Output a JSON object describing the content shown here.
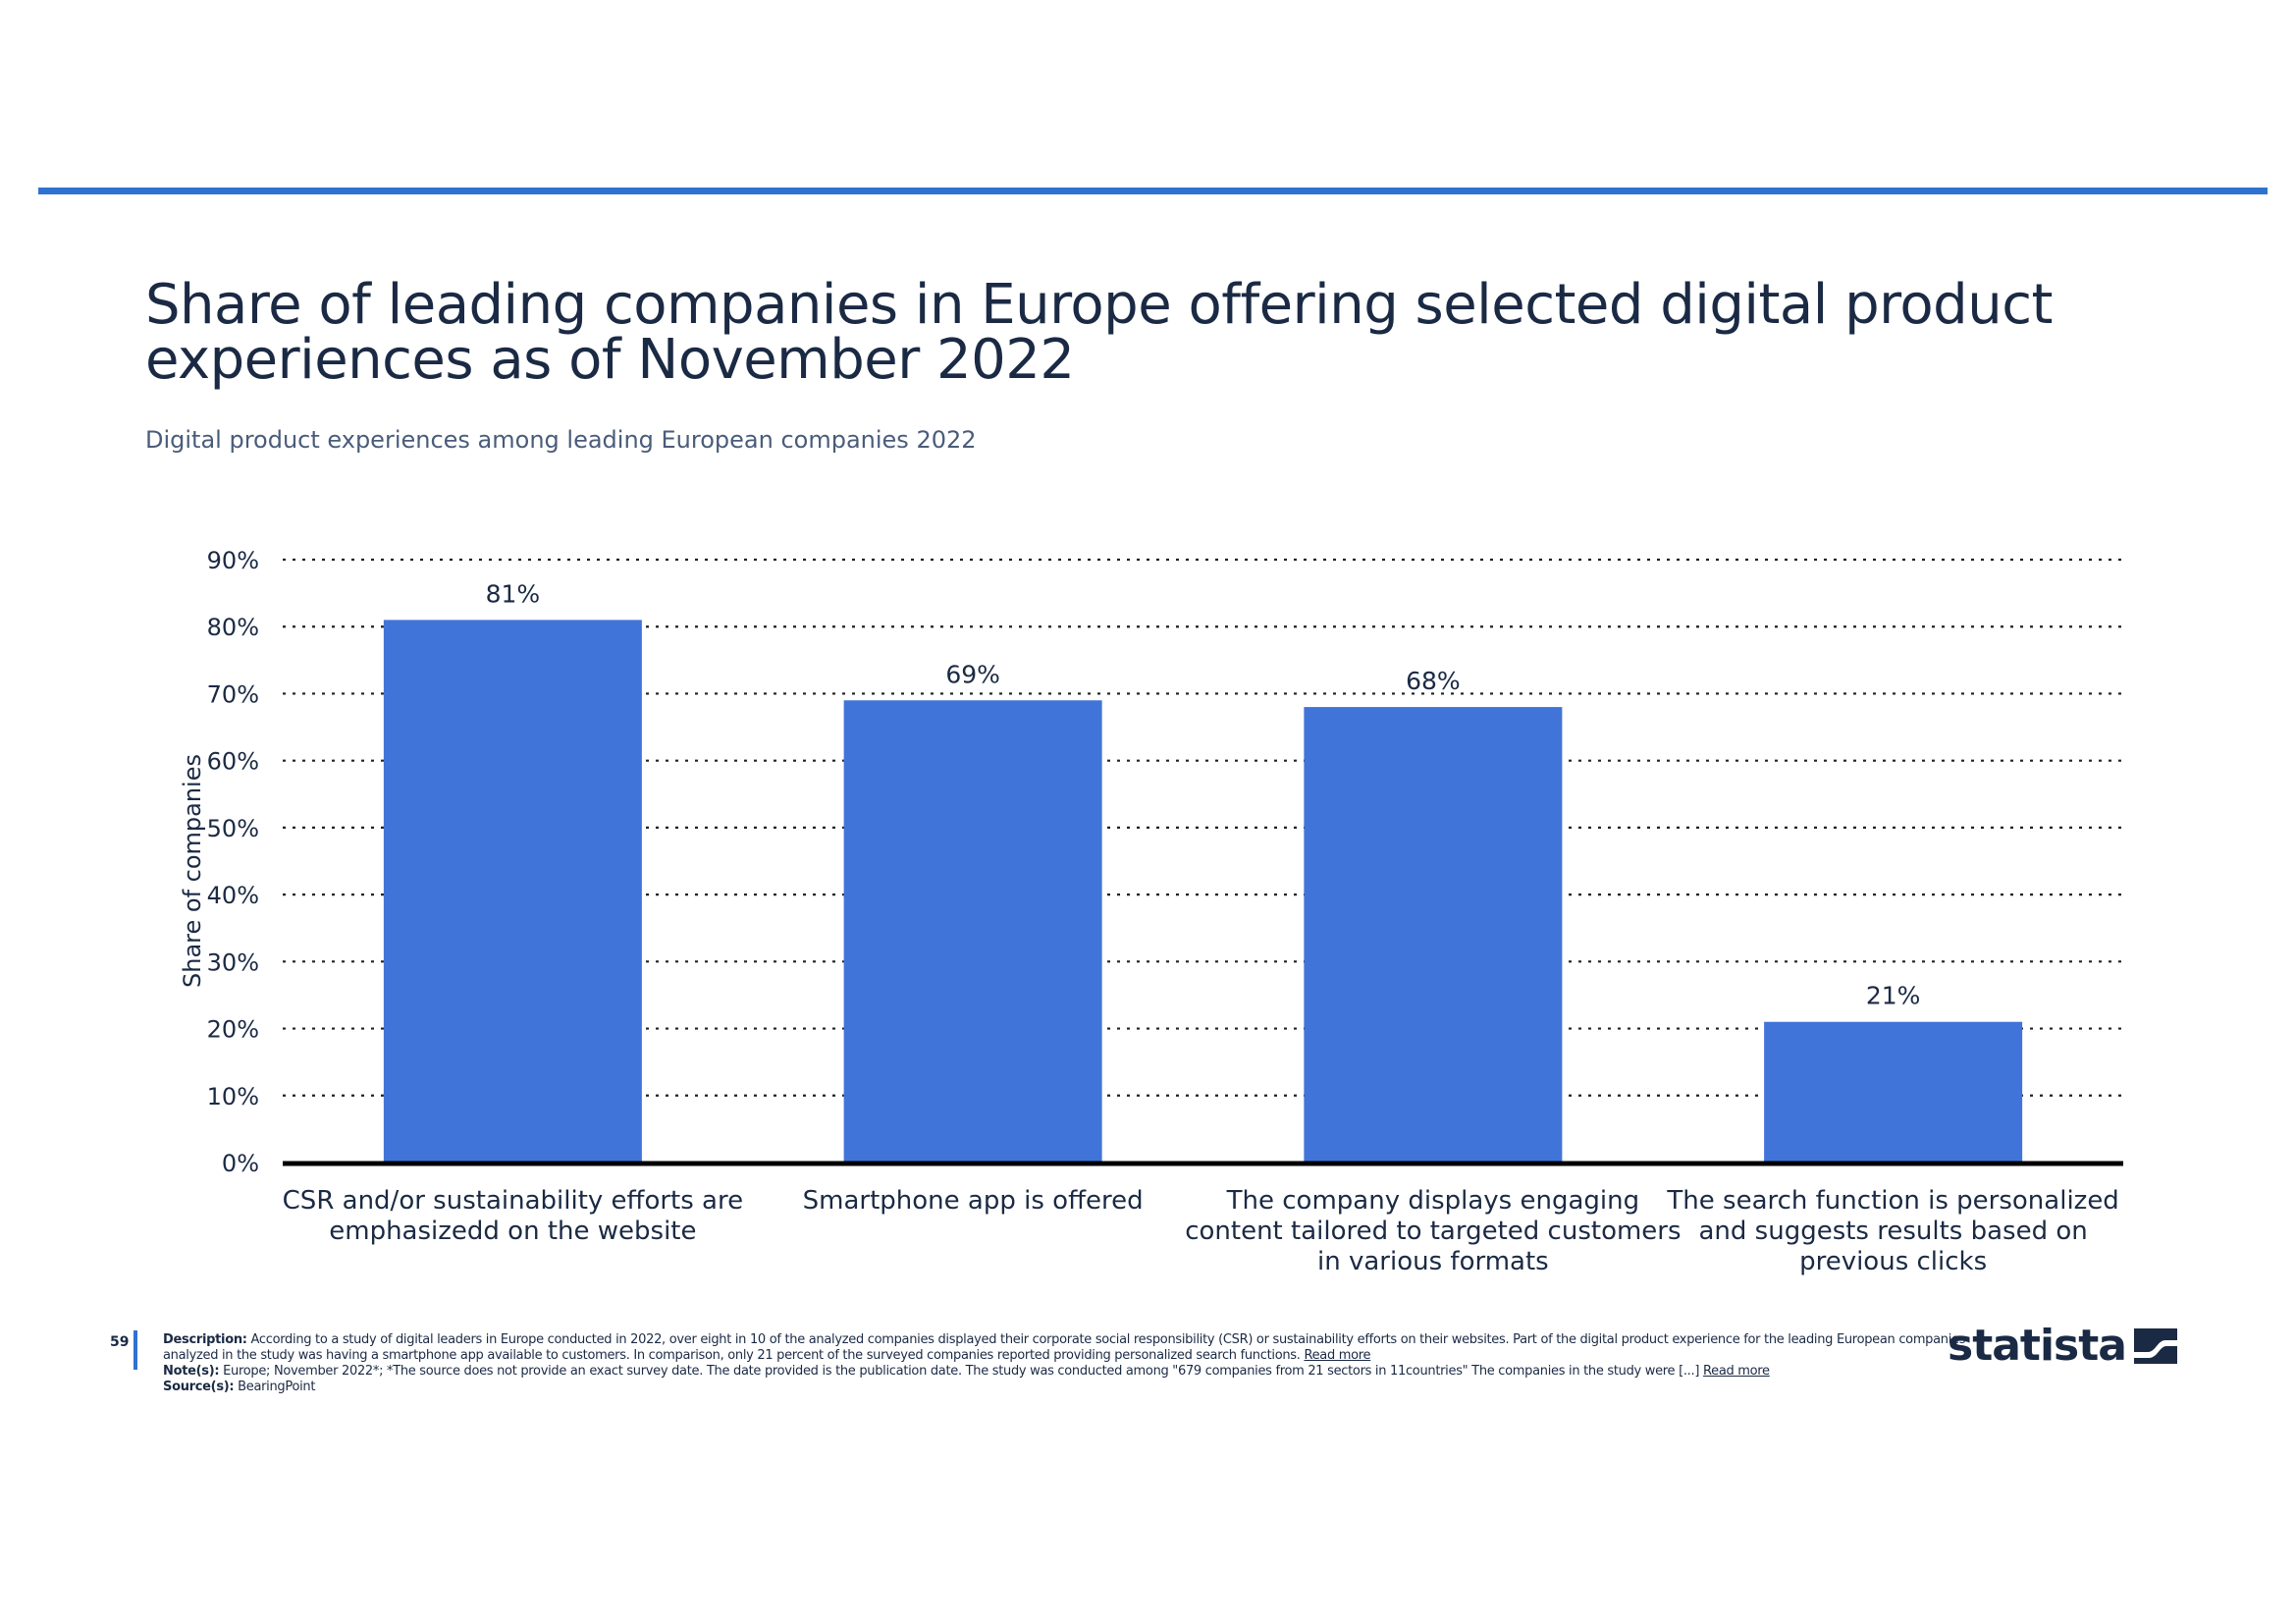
{
  "header": {
    "title": "Share of leading companies in Europe offering selected digital product experiences as of November 2022",
    "subtitle": "Digital product experiences among leading European companies 2022"
  },
  "colors": {
    "accent": "#2f72d0",
    "bar": "#4174d8",
    "text": "#1b2a44",
    "subtitle": "#4a5c7a",
    "baseline": "#000000"
  },
  "chart_data": {
    "type": "bar",
    "title": "Share of leading companies in Europe offering selected digital product experiences as of November 2022",
    "subtitle": "Digital product experiences among leading European companies 2022",
    "xlabel": "",
    "ylabel": "Share of companies",
    "ylim": [
      0,
      90
    ],
    "yticks": [
      0,
      10,
      20,
      30,
      40,
      50,
      60,
      70,
      80,
      90
    ],
    "ytick_labels": [
      "0%",
      "10%",
      "20%",
      "30%",
      "40%",
      "50%",
      "60%",
      "70%",
      "80%",
      "90%"
    ],
    "grid": true,
    "legend": "none",
    "categories": [
      [
        "CSR and/or sustainability efforts are",
        "emphasizedd on the website"
      ],
      [
        "Smartphone app is offered"
      ],
      [
        "The company displays engaging",
        "content tailored to targeted customers",
        "in various formats"
      ],
      [
        "The search function is personalized",
        "and suggests results based on",
        "previous clicks"
      ]
    ],
    "values": [
      81,
      69,
      68,
      21
    ],
    "value_labels": [
      "81%",
      "69%",
      "68%",
      "21%"
    ]
  },
  "footer": {
    "page_number": "59",
    "description_label": "Description:",
    "description_text": "According to a study of digital leaders in Europe conducted in 2022, over eight in 10 of the analyzed companies displayed their corporate social responsibility (CSR) or sustainability efforts on their websites. Part of the digital product experience for the leading European companies analyzed in the study was having a smartphone app available to customers. In comparison, only 21 percent of the surveyed companies reported providing personalized search functions.",
    "read_more_1": "Read more",
    "note_label": "Note(s):",
    "note_text": "Europe; November 2022*; *The source does not provide an exact survey date. The date provided is the publication date. The study was conducted among \"679 companies from 21 sectors in 11countries\" The companies in the study were [...]",
    "read_more_2": "Read more",
    "source_label": "Source(s):",
    "source_text": "BearingPoint"
  },
  "logo": {
    "wordmark": "statista",
    "icon": "statista-logo-icon"
  }
}
